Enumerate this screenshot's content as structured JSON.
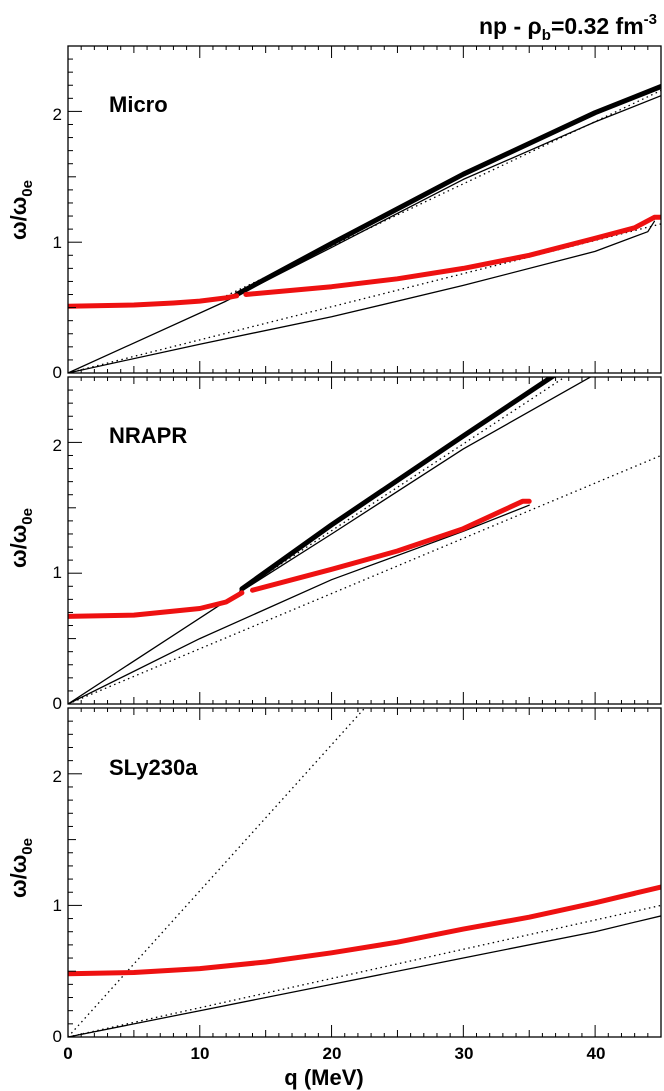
{
  "figure_title": {
    "prefix": "np - ",
    "rho": "ρ",
    "rho_sub": "b",
    "rest": "=0.32 fm",
    "exp": "-3"
  },
  "x_axis": {
    "label": "q (MeV)",
    "tick_labels": [
      "0",
      "10",
      "20",
      "30",
      "40"
    ]
  },
  "y_axis": {
    "label_main": "ω/ω",
    "label_sub": "0e",
    "tick_labels": [
      "0",
      "1",
      "2"
    ]
  },
  "colors": {
    "collective": "#ee1111",
    "branch": "#000000",
    "axis": "#000000"
  },
  "chart_data": [
    {
      "type": "line",
      "title": "Micro",
      "xlabel": "q (MeV)",
      "ylabel": "ω/ω0e",
      "xlim": [
        0,
        45
      ],
      "ylim": [
        0,
        2.5
      ],
      "series": [
        {
          "name": "red-lower",
          "style": "red",
          "points": [
            [
              0,
              0.51
            ],
            [
              5,
              0.52
            ],
            [
              8,
              0.535
            ],
            [
              10,
              0.55
            ],
            [
              12,
              0.575
            ],
            [
              12.8,
              0.59
            ]
          ]
        },
        {
          "name": "red-upper",
          "style": "red",
          "points": [
            [
              13.5,
              0.6
            ],
            [
              20,
              0.66
            ],
            [
              25,
              0.72
            ],
            [
              30,
              0.8
            ],
            [
              35,
              0.9
            ],
            [
              40,
              1.03
            ],
            [
              43,
              1.11
            ],
            [
              44.5,
              1.19
            ],
            [
              45,
              1.19
            ]
          ]
        },
        {
          "name": "black-thick",
          "style": "thick",
          "points": [
            [
              12.8,
              0.6
            ],
            [
              20,
              0.99
            ],
            [
              30,
              1.52
            ],
            [
              40,
              1.99
            ],
            [
              45,
              2.19
            ]
          ]
        },
        {
          "name": "black-thin-upper",
          "style": "thin",
          "points": [
            [
              0,
              0
            ],
            [
              12,
              0.55
            ],
            [
              20,
              0.96
            ],
            [
              30,
              1.48
            ],
            [
              40,
              1.92
            ],
            [
              45,
              2.12
            ]
          ]
        },
        {
          "name": "black-thin-lower",
          "style": "thin",
          "points": [
            [
              0,
              0
            ],
            [
              10,
              0.22
            ],
            [
              20,
              0.43
            ],
            [
              30,
              0.67
            ],
            [
              40,
              0.93
            ],
            [
              44,
              1.08
            ],
            [
              44.5,
              1.16
            ]
          ]
        },
        {
          "name": "dotted-steep",
          "style": "dotted",
          "points": [
            [
              12,
              0.59
            ],
            [
              45,
              2.16
            ]
          ]
        },
        {
          "name": "dotted-shallow",
          "style": "dotted",
          "points": [
            [
              0,
              0
            ],
            [
              45,
              1.14
            ]
          ]
        }
      ]
    },
    {
      "type": "line",
      "title": "NRAPR",
      "xlabel": "q (MeV)",
      "ylabel": "ω/ω0e",
      "xlim": [
        0,
        45
      ],
      "ylim": [
        0,
        2.5
      ],
      "series": [
        {
          "name": "red-lower",
          "style": "red",
          "points": [
            [
              0,
              0.67
            ],
            [
              5,
              0.68
            ],
            [
              10,
              0.73
            ],
            [
              12,
              0.78
            ],
            [
              13.2,
              0.85
            ]
          ]
        },
        {
          "name": "red-upper",
          "style": "red",
          "points": [
            [
              14,
              0.87
            ],
            [
              20,
              1.03
            ],
            [
              25,
              1.17
            ],
            [
              30,
              1.34
            ],
            [
              33,
              1.48
            ],
            [
              34.5,
              1.55
            ],
            [
              35,
              1.55
            ]
          ]
        },
        {
          "name": "black-thick",
          "style": "thick",
          "points": [
            [
              13.2,
              0.88
            ],
            [
              20,
              1.37
            ],
            [
              30,
              2.05
            ],
            [
              37,
              2.52
            ]
          ]
        },
        {
          "name": "black-thin-upper",
          "style": "thin",
          "points": [
            [
              0,
              0
            ],
            [
              12.5,
              0.82
            ],
            [
              20,
              1.3
            ],
            [
              30,
              1.95
            ],
            [
              40,
              2.52
            ]
          ]
        },
        {
          "name": "black-thin-lower",
          "style": "thin",
          "points": [
            [
              0,
              0
            ],
            [
              10,
              0.5
            ],
            [
              20,
              0.95
            ],
            [
              30,
              1.32
            ],
            [
              35,
              1.52
            ]
          ]
        },
        {
          "name": "dotted-steep",
          "style": "dotted",
          "points": [
            [
              13,
              0.86
            ],
            [
              38,
              2.52
            ]
          ]
        },
        {
          "name": "dotted-shallow",
          "style": "dotted",
          "points": [
            [
              0,
              0
            ],
            [
              45,
              1.9
            ]
          ]
        }
      ]
    },
    {
      "type": "line",
      "title": "SLy230a",
      "xlabel": "q (MeV)",
      "ylabel": "ω/ω0e",
      "xlim": [
        0,
        45
      ],
      "ylim": [
        0,
        2.5
      ],
      "series": [
        {
          "name": "red",
          "style": "red",
          "points": [
            [
              0,
              0.48
            ],
            [
              5,
              0.49
            ],
            [
              10,
              0.52
            ],
            [
              15,
              0.57
            ],
            [
              20,
              0.64
            ],
            [
              25,
              0.72
            ],
            [
              30,
              0.82
            ],
            [
              35,
              0.91
            ],
            [
              40,
              1.02
            ],
            [
              45,
              1.14
            ]
          ]
        },
        {
          "name": "black-thin",
          "style": "thin",
          "points": [
            [
              0,
              0
            ],
            [
              10,
              0.2
            ],
            [
              20,
              0.4
            ],
            [
              30,
              0.6
            ],
            [
              40,
              0.8
            ],
            [
              45,
              0.92
            ]
          ]
        },
        {
          "name": "dotted-steep",
          "style": "dotted",
          "points": [
            [
              0,
              0
            ],
            [
              22.7,
              2.52
            ]
          ]
        },
        {
          "name": "dotted-shallow",
          "style": "dotted",
          "points": [
            [
              0,
              0
            ],
            [
              45,
              1.0
            ]
          ]
        }
      ]
    }
  ]
}
